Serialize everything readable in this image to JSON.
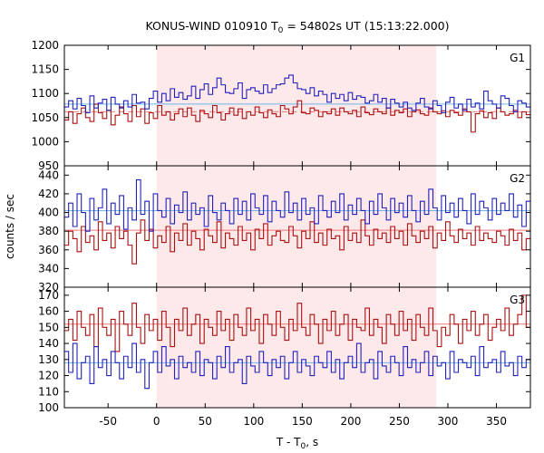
{
  "title": {
    "prefix": "KONUS-WIND 010910 T",
    "subscript": "0",
    "suffix": " = 54802s UT (15:13:22.000)"
  },
  "xlabel": {
    "prefix": "T - T",
    "subscript": "0",
    "suffix": ", s"
  },
  "ylabel": "counts / sec",
  "chart_data": {
    "type": "line",
    "x_range": [
      -95,
      385
    ],
    "x_ticks": [
      -50,
      0,
      50,
      100,
      150,
      200,
      250,
      300,
      350
    ],
    "highlight_interval": [
      0,
      288
    ],
    "colors": {
      "series_a": "#2222bb",
      "series_b": "#aa1111",
      "mean_a": "#6fb6e8",
      "mean_b": "#ee7777",
      "highlight": "#fde8ea"
    },
    "panels": [
      {
        "label": "G1",
        "ylim": [
          950,
          1200
        ],
        "y_ticks": [
          950,
          1000,
          1050,
          1100,
          1150,
          1200
        ],
        "mean_a": 1078,
        "mean_b": 1062,
        "mean_b_dashed": true,
        "series_a": [
          1072,
          1085,
          1068,
          1090,
          1075,
          1060,
          1095,
          1070,
          1080,
          1088,
          1065,
          1092,
          1078,
          1070,
          1085,
          1072,
          1098,
          1080,
          1082,
          1068,
          1090,
          1105,
          1082,
          1100,
          1085,
          1110,
          1092,
          1102,
          1088,
          1095,
          1115,
          1090,
          1108,
          1120,
          1098,
          1112,
          1132,
          1118,
          1102,
          1100,
          1110,
          1122,
          1090,
          1108,
          1112,
          1105,
          1100,
          1118,
          1102,
          1110,
          1118,
          1120,
          1132,
          1138,
          1122,
          1110,
          1108,
          1100,
          1112,
          1095,
          1105,
          1098,
          1082,
          1100,
          1090,
          1098,
          1085,
          1102,
          1088,
          1095,
          1092,
          1080,
          1085,
          1098,
          1082,
          1090,
          1070,
          1088,
          1080,
          1072,
          1082,
          1070,
          1065,
          1080,
          1090,
          1072,
          1068,
          1085,
          1075,
          1060,
          1082,
          1092,
          1070,
          1078,
          1065,
          1088,
          1072,
          1080,
          1068,
          1105,
          1085,
          1078,
          1070,
          1095,
          1090,
          1075,
          1062,
          1085,
          1080,
          1072
        ],
        "series_b": [
          1045,
          1062,
          1038,
          1058,
          1070,
          1050,
          1042,
          1078,
          1060,
          1048,
          1065,
          1035,
          1055,
          1072,
          1058,
          1042,
          1075,
          1052,
          1068,
          1038,
          1060,
          1048,
          1075,
          1055,
          1062,
          1045,
          1058,
          1068,
          1052,
          1070,
          1055,
          1042,
          1065,
          1058,
          1050,
          1075,
          1060,
          1045,
          1058,
          1070,
          1055,
          1068,
          1048,
          1062,
          1055,
          1072,
          1060,
          1050,
          1066,
          1058,
          1052,
          1075,
          1068,
          1058,
          1072,
          1085,
          1060,
          1058,
          1070,
          1065,
          1052,
          1062,
          1058,
          1068,
          1055,
          1070,
          1062,
          1058,
          1065,
          1052,
          1072,
          1060,
          1056,
          1068,
          1062,
          1058,
          1070,
          1055,
          1065,
          1060,
          1068,
          1052,
          1062,
          1066,
          1058,
          1055,
          1070,
          1062,
          1058,
          1064,
          1052,
          1065,
          1060,
          1055,
          1068,
          1062,
          1020,
          1058,
          1064,
          1050,
          1060,
          1048,
          1070,
          1062,
          1055,
          1058,
          1065,
          1050,
          1062,
          1056
        ]
      },
      {
        "label": "G2",
        "ylim": [
          320,
          450
        ],
        "y_ticks": [
          320,
          340,
          360,
          380,
          400,
          420,
          440
        ],
        "mean_a": 402,
        "mean_b": 381,
        "mean_b_dashed": false,
        "series_a": [
          395,
          410,
          385,
          420,
          400,
          380,
          415,
          392,
          405,
          425,
          388,
          410,
          398,
          418,
          382,
          405,
          392,
          435,
          398,
          412,
          380,
          420,
          402,
          395,
          415,
          388,
          408,
          400,
          422,
          392,
          410,
          398,
          405,
          385,
          418,
          400,
          392,
          410,
          402,
          388,
          415,
          398,
          412,
          392,
          420,
          405,
          398,
          418,
          390,
          412,
          402,
          395,
          422,
          400,
          410,
          392,
          415,
          398,
          405,
          388,
          418,
          402,
          395,
          412,
          400,
          420,
          392,
          408,
          398,
          415,
          402,
          388,
          412,
          398,
          420,
          405,
          392,
          415,
          400,
          410,
          395,
          418,
          402,
          390,
          412,
          398,
          425,
          405,
          392,
          418,
          400,
          410,
          395,
          415,
          402,
          388,
          420,
          398,
          412,
          405,
          392,
          415,
          398,
          410,
          402,
          420,
          395,
          408,
          385,
          412
        ],
        "series_b": [
          365,
          380,
          372,
          358,
          385,
          368,
          375,
          360,
          390,
          370,
          378,
          362,
          385,
          372,
          380,
          365,
          345,
          378,
          392,
          370,
          382,
          362,
          375,
          368,
          385,
          358,
          378,
          370,
          388,
          365,
          380,
          372,
          360,
          382,
          375,
          368,
          390,
          362,
          378,
          372,
          365,
          385,
          370,
          378,
          360,
          382,
          372,
          388,
          365,
          375,
          380,
          370,
          368,
          385,
          375,
          362,
          380,
          372,
          390,
          368,
          378,
          365,
          382,
          372,
          375,
          360,
          385,
          370,
          378,
          368,
          392,
          375,
          365,
          382,
          372,
          378,
          368,
          385,
          372,
          380,
          365,
          388,
          375,
          368,
          380,
          372,
          385,
          362,
          378,
          370,
          390,
          375,
          368,
          382,
          372,
          378,
          365,
          385,
          370,
          378,
          372,
          368,
          380,
          375,
          365,
          382,
          370,
          378,
          360,
          372
        ]
      },
      {
        "label": "G3",
        "ylim": [
          100,
          175
        ],
        "y_ticks": [
          100,
          110,
          120,
          130,
          140,
          150,
          160,
          170
        ],
        "mean_a": 128,
        "mean_b": 152,
        "mean_b_dashed": false,
        "series_a": [
          135,
          122,
          140,
          118,
          128,
          132,
          115,
          138,
          125,
          130,
          120,
          135,
          128,
          118,
          132,
          125,
          140,
          122,
          130,
          112,
          128,
          135,
          122,
          138,
          126,
          130,
          118,
          132,
          125,
          128,
          122,
          135,
          120,
          130,
          128,
          118,
          132,
          125,
          138,
          122,
          128,
          130,
          115,
          132,
          126,
          122,
          135,
          128,
          120,
          130,
          125,
          132,
          118,
          128,
          135,
          122,
          130,
          126,
          120,
          132,
          128,
          125,
          135,
          122,
          130,
          118,
          128,
          132,
          125,
          140,
          122,
          128,
          130,
          118,
          135,
          126,
          122,
          132,
          128,
          120,
          138,
          125,
          130,
          122,
          128,
          135,
          120,
          132,
          126,
          128,
          118,
          135,
          122,
          130,
          128,
          125,
          132,
          120,
          138,
          125,
          128,
          130,
          122,
          135,
          126,
          128,
          120,
          132,
          125,
          130
        ],
        "series_b": [
          148,
          155,
          142,
          160,
          150,
          145,
          158,
          138,
          162,
          150,
          145,
          155,
          135,
          160,
          152,
          145,
          165,
          150,
          140,
          158,
          148,
          155,
          142,
          160,
          150,
          138,
          155,
          148,
          162,
          145,
          152,
          158,
          140,
          155,
          150,
          145,
          160,
          148,
          155,
          142,
          158,
          150,
          145,
          162,
          148,
          155,
          140,
          158,
          152,
          145,
          160,
          150,
          142,
          155,
          148,
          165,
          150,
          145,
          158,
          152,
          140,
          155,
          148,
          160,
          145,
          152,
          158,
          142,
          155,
          150,
          148,
          162,
          145,
          155,
          150,
          140,
          158,
          152,
          145,
          160,
          148,
          155,
          142,
          158,
          150,
          145,
          162,
          148,
          138,
          150,
          145,
          158,
          152,
          140,
          155,
          148,
          160,
          145,
          152,
          158,
          142,
          150,
          155,
          148,
          162,
          145,
          152,
          158,
          170,
          150
        ]
      }
    ]
  }
}
